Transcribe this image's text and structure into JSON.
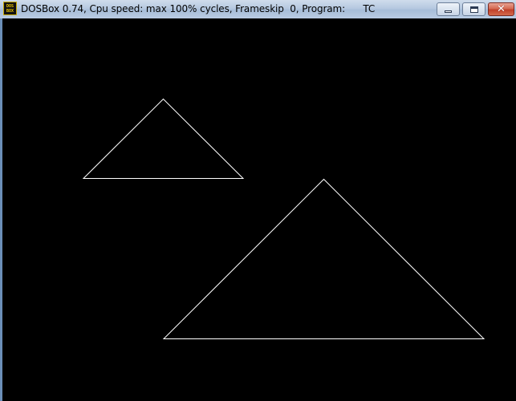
{
  "window": {
    "title": "DOSBox 0.74, Cpu speed: max 100% cycles, Frameskip  0, Program:      TC",
    "icon": "dosbox-icon",
    "icon_label_top": "DOS",
    "icon_label_bottom": "BOX",
    "controls": {
      "minimize": "minimize-icon",
      "maximize": "maximize-icon",
      "close": "close-icon"
    }
  },
  "screen": {
    "background": "#000000",
    "line_color": "#ffffff",
    "shapes": [
      {
        "name": "small-triangle",
        "type": "triangle"
      },
      {
        "name": "large-triangle",
        "type": "triangle"
      }
    ]
  }
}
